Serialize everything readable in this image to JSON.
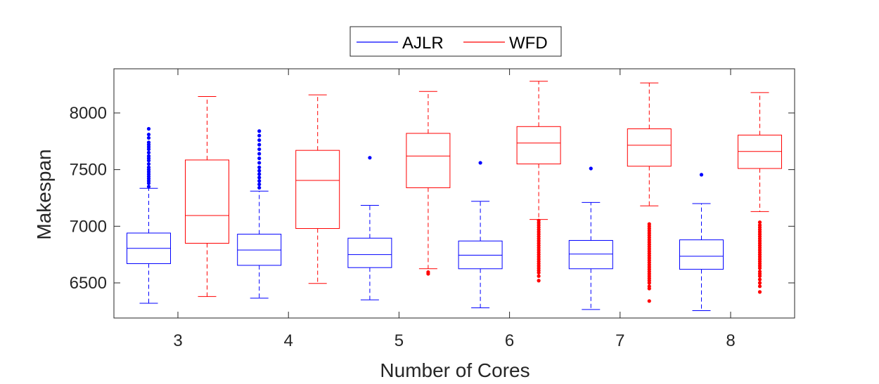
{
  "chart_data": {
    "type": "boxplot",
    "xlabel": "Number of Cores",
    "ylabel": "Makespan",
    "categories": [
      "3",
      "4",
      "5",
      "6",
      "7",
      "8"
    ],
    "ylim": [
      6190,
      8390
    ],
    "yticks": [
      6500,
      7000,
      7500,
      8000
    ],
    "yticklabels": [
      "6500",
      "7000",
      "7500",
      "8000"
    ],
    "grid": false,
    "legend_position": "top-center",
    "series": [
      {
        "name": "AJLR",
        "color": "#0000ff",
        "boxes": [
          {
            "category": "3",
            "whisker_low": 6320,
            "q1": 6670,
            "median": 6805,
            "q3": 6940,
            "whisker_high": 7335,
            "outliers": [
              7350,
              7380,
              7400,
              7420,
              7440,
              7460,
              7480,
              7500,
              7520,
              7550,
              7580,
              7600,
              7620,
              7650,
              7680,
              7700,
              7720,
              7740,
              7780,
              7810,
              7860
            ]
          },
          {
            "category": "4",
            "whisker_low": 6365,
            "q1": 6655,
            "median": 6790,
            "q3": 6930,
            "whisker_high": 7310,
            "outliers": [
              7340,
              7370,
              7400,
              7430,
              7460,
              7490,
              7520,
              7560,
              7600,
              7640,
              7680,
              7720,
              7760,
              7800,
              7840
            ]
          },
          {
            "category": "5",
            "whisker_low": 6350,
            "q1": 6635,
            "median": 6750,
            "q3": 6895,
            "whisker_high": 7185,
            "outliers": [
              7605
            ]
          },
          {
            "category": "6",
            "whisker_low": 6280,
            "q1": 6625,
            "median": 6745,
            "q3": 6870,
            "whisker_high": 7220,
            "outliers": [
              7560
            ]
          },
          {
            "category": "7",
            "whisker_low": 6265,
            "q1": 6625,
            "median": 6755,
            "q3": 6875,
            "whisker_high": 7210,
            "outliers": [
              7510
            ]
          },
          {
            "category": "8",
            "whisker_low": 6255,
            "q1": 6620,
            "median": 6735,
            "q3": 6880,
            "whisker_high": 7200,
            "outliers": [
              7455
            ]
          }
        ]
      },
      {
        "name": "WFD",
        "color": "#ff0000",
        "boxes": [
          {
            "category": "3",
            "whisker_low": 6380,
            "q1": 6850,
            "median": 7095,
            "q3": 7585,
            "whisker_high": 8145,
            "outliers": []
          },
          {
            "category": "4",
            "whisker_low": 6495,
            "q1": 6980,
            "median": 7405,
            "q3": 7670,
            "whisker_high": 8160,
            "outliers": []
          },
          {
            "category": "5",
            "whisker_low": 6625,
            "q1": 7340,
            "median": 7620,
            "q3": 7820,
            "whisker_high": 8190,
            "outliers": [
              6595,
              6580
            ]
          },
          {
            "category": "6",
            "whisker_low": 7060,
            "q1": 7550,
            "median": 7735,
            "q3": 7880,
            "whisker_high": 8280,
            "outliers": [
              7050,
              7030,
              7010,
              6990,
              6970,
              6950,
              6930,
              6910,
              6890,
              6870,
              6850,
              6830,
              6810,
              6790,
              6770,
              6750,
              6730,
              6710,
              6690,
              6670,
              6650,
              6630,
              6610,
              6590,
              6560,
              6520
            ]
          },
          {
            "category": "7",
            "whisker_low": 7180,
            "q1": 7530,
            "median": 7715,
            "q3": 7860,
            "whisker_high": 8265,
            "outliers": [
              7020,
              7000,
              6980,
              6960,
              6940,
              6920,
              6900,
              6880,
              6860,
              6840,
              6820,
              6800,
              6780,
              6760,
              6740,
              6720,
              6700,
              6680,
              6660,
              6640,
              6620,
              6600,
              6580,
              6560,
              6540,
              6520,
              6500,
              6470,
              6450,
              6340
            ]
          },
          {
            "category": "8",
            "whisker_low": 7130,
            "q1": 7510,
            "median": 7660,
            "q3": 7805,
            "whisker_high": 8180,
            "outliers": [
              7035,
              7010,
              6990,
              6970,
              6950,
              6930,
              6910,
              6890,
              6870,
              6850,
              6830,
              6810,
              6790,
              6770,
              6750,
              6730,
              6710,
              6690,
              6670,
              6650,
              6630,
              6600,
              6580,
              6560,
              6530,
              6500,
              6470,
              6420
            ]
          }
        ]
      }
    ]
  }
}
